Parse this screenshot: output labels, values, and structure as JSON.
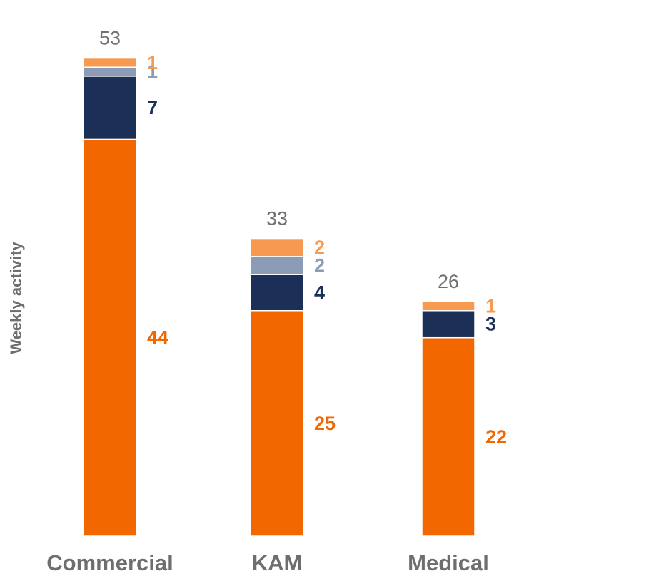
{
  "chart_data": {
    "type": "bar",
    "stacked": true,
    "title": "",
    "xlabel": "",
    "ylabel": "Weekly activity",
    "ylim": [
      0,
      53
    ],
    "grid": false,
    "legend": "none",
    "categories": [
      "Commercial",
      "KAM",
      "Medical"
    ],
    "totals": [
      53,
      33,
      26
    ],
    "series": [
      {
        "values": [
          44,
          25,
          22
        ],
        "color": "#F26700"
      },
      {
        "values": [
          7,
          4,
          3
        ],
        "color": "#1C2F57"
      },
      {
        "values": [
          1,
          2,
          0
        ],
        "color": "#8C9CB6"
      },
      {
        "values": [
          1,
          2,
          1
        ],
        "color": "#F79A4F"
      }
    ]
  }
}
